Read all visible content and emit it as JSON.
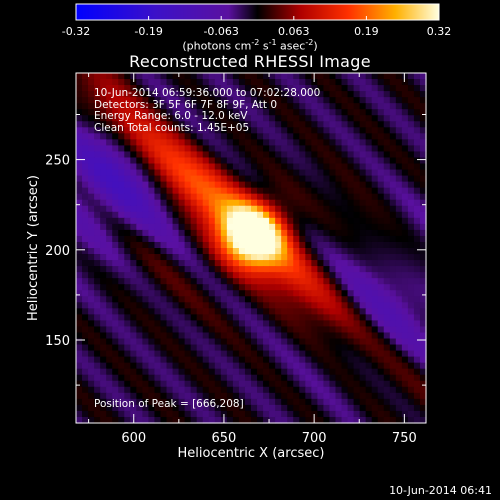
{
  "chart_data": {
    "type": "heatmap",
    "title": "Reconstructed RHESSI Image",
    "xlabel": "Heliocentric X (arcsec)",
    "ylabel": "Heliocentric Y (arcsec)",
    "xlim": [
      568,
      762
    ],
    "ylim": [
      104,
      298
    ],
    "x_ticks": [
      600,
      650,
      700,
      750
    ],
    "y_ticks": [
      150,
      200,
      250
    ],
    "colorbar": {
      "range": [
        -0.32,
        0.32
      ],
      "tick_labels": [
        "-0.32",
        "-0.19",
        "-0.063",
        "0.063",
        "0.19",
        "0.32"
      ],
      "units": {
        "pre": "(photons cm",
        "e1": "-2",
        "mid1": " s",
        "e2": "-1",
        "mid2": " asec",
        "e3": "-2",
        "post": ")"
      }
    },
    "annotations": [
      "10-Jun-2014 06:59:36.000 to 07:02:28.000",
      "Detectors: 3F 5F 6F 7F 8F 9F, Att 0",
      "Energy Range: 6.0 - 12.0 keV",
      "Clean     Total counts: 1.45E+05"
    ],
    "peak_label": "Position of Peak = [666,208]",
    "peak": [
      666,
      208
    ],
    "grid": false
  },
  "footer": {
    "date": "10-Jun-2014 06:41"
  }
}
